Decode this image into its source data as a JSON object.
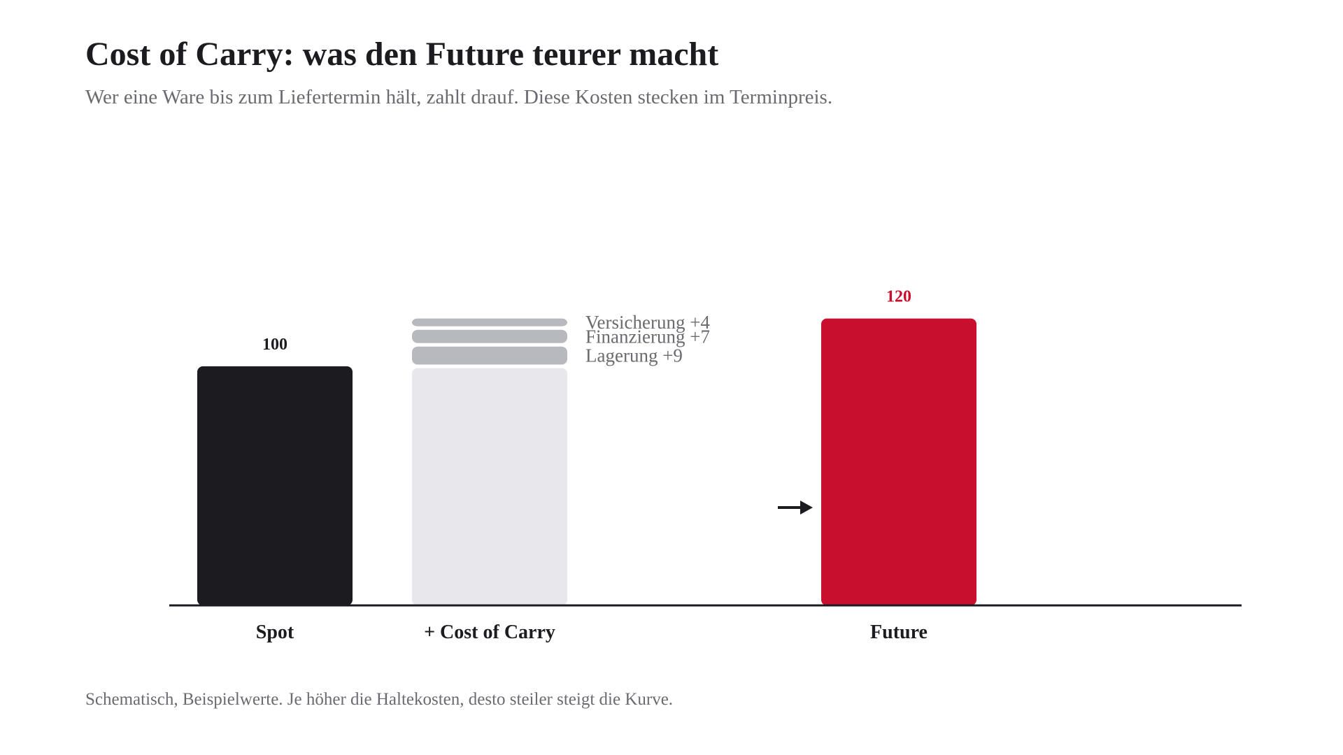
{
  "title": "Cost of Carry: was den Future teurer macht",
  "subtitle": "Wer eine Ware bis zum Liefertermin hält, zahlt drauf. Diese Kosten stecken im Terminpreis.",
  "footnote": "Schematisch, Beispielwerte. Je höher die Haltekosten, desto steiler steigt die Kurve.",
  "colors": {
    "spot": "#1c1b20",
    "base": "#e8e7ec",
    "cost": "#b8b8bf",
    "future": "#c8102e",
    "muted": "#6a6a70"
  },
  "chart_data": {
    "type": "bar",
    "categories": [
      "Spot",
      "+ Cost of Carry",
      "Future"
    ],
    "ylim": [
      0,
      200
    ],
    "bars": [
      {
        "category": "Spot",
        "value": 100,
        "value_label": "100"
      },
      {
        "category": "+ Cost of Carry",
        "stacked": true,
        "segments": [
          {
            "label": "",
            "value": 100
          },
          {
            "label": "Lagerung +9",
            "value": 9
          },
          {
            "label": "Finanzierung +7",
            "value": 7
          },
          {
            "label": "Versicherung +4",
            "value": 4
          }
        ]
      },
      {
        "category": "Future",
        "value": 120,
        "value_label": "120"
      }
    ],
    "annotation": "arrow pointing to Future bar",
    "grid": false,
    "legend": "none"
  }
}
